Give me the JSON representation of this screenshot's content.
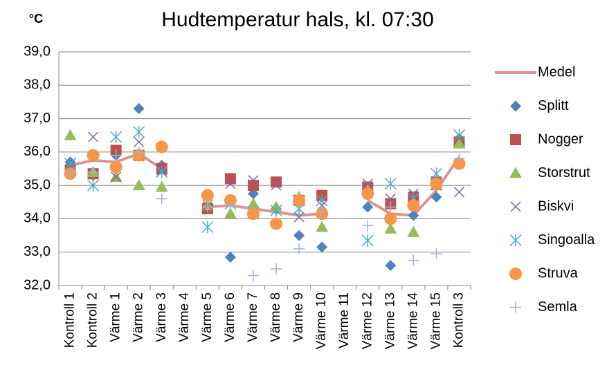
{
  "chart_data": {
    "type": "line",
    "title": "Hudtemperatur hals, kl. 07:30",
    "y_label": "°C",
    "categories": [
      "Kontroll 1",
      "Kontroll 2",
      "Värme 1",
      "Värme 2",
      "Värme 3",
      "Värme 4",
      "Värme 5",
      "Värme 6",
      "Värme 7",
      "Värme 8",
      "Värme 9",
      "Värme 10",
      "Värme 11",
      "Värme 12",
      "Värme 13",
      "Värme 14",
      "Värme 15",
      "Kontroll 3"
    ],
    "ylim": [
      32,
      39
    ],
    "yticks": [
      {
        "value": 32,
        "label": "32,0"
      },
      {
        "value": 33,
        "label": "33,0"
      },
      {
        "value": 34,
        "label": "34,0"
      },
      {
        "value": 35,
        "label": "35,0"
      },
      {
        "value": 36,
        "label": "36,0"
      },
      {
        "value": 37,
        "label": "37,0"
      },
      {
        "value": 38,
        "label": "38,0"
      },
      {
        "value": 39,
        "label": "39,0"
      }
    ],
    "grid": true,
    "legend": "right",
    "series": [
      {
        "name": "Medel",
        "color": "#d99694",
        "marker": "line",
        "values": [
          35.6,
          35.75,
          35.7,
          35.95,
          35.5,
          null,
          34.35,
          34.4,
          34.3,
          34.2,
          34.1,
          34.15,
          null,
          34.55,
          34.15,
          34.1,
          34.85,
          35.85
        ]
      },
      {
        "name": "Splitt",
        "color": "#4f81bd",
        "marker": "diamond",
        "values": [
          35.7,
          35.3,
          35.9,
          37.3,
          35.6,
          null,
          34.3,
          32.85,
          34.75,
          34.3,
          33.5,
          33.15,
          null,
          34.35,
          32.6,
          34.1,
          34.65,
          36.4
        ]
      },
      {
        "name": "Nogger",
        "color": "#c0504d",
        "marker": "square",
        "values": [
          35.45,
          35.35,
          36.05,
          35.9,
          35.5,
          null,
          34.3,
          35.2,
          35.0,
          35.1,
          34.55,
          34.7,
          null,
          34.95,
          34.45,
          34.65,
          35.1,
          36.3
        ]
      },
      {
        "name": "Storstrut",
        "color": "#9bbb59",
        "marker": "triangle",
        "values": [
          36.5,
          35.4,
          35.25,
          35.0,
          34.95,
          null,
          34.4,
          34.15,
          34.45,
          34.35,
          34.65,
          33.75,
          null,
          34.85,
          33.7,
          33.6,
          35.0,
          36.25
        ]
      },
      {
        "name": "Biskvi",
        "color": "#8064a2",
        "marker": "x",
        "values": [
          35.5,
          36.45,
          35.25,
          36.3,
          35.45,
          null,
          34.4,
          35.05,
          35.15,
          35.0,
          34.05,
          34.4,
          null,
          35.05,
          34.6,
          34.75,
          35.0,
          34.8
        ]
      },
      {
        "name": "Singoalla",
        "color": "#4bacc6",
        "marker": "asterisk",
        "values": [
          35.65,
          35.0,
          36.45,
          36.6,
          35.4,
          null,
          33.75,
          34.45,
          34.2,
          34.25,
          34.3,
          34.55,
          null,
          33.35,
          35.05,
          34.6,
          35.35,
          36.5
        ]
      },
      {
        "name": "Struva",
        "color": "#f79646",
        "marker": "circle",
        "values": [
          35.35,
          35.9,
          35.55,
          35.9,
          36.15,
          null,
          34.7,
          34.55,
          34.15,
          33.85,
          34.55,
          34.15,
          null,
          34.75,
          34.0,
          34.4,
          35.05,
          35.65
        ]
      },
      {
        "name": "Semla",
        "color": "#9eb3d6",
        "marker": "plus",
        "values": [
          35.35,
          35.4,
          35.9,
          36.0,
          34.6,
          null,
          34.35,
          34.4,
          32.3,
          32.5,
          33.1,
          34.2,
          null,
          33.8,
          34.35,
          32.75,
          32.95,
          35.8
        ]
      }
    ]
  }
}
